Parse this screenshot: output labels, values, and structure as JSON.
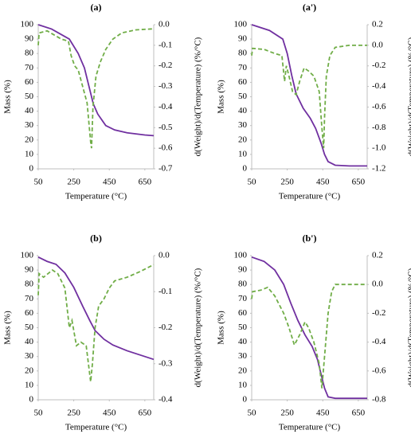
{
  "chart_data": [
    {
      "type": "line",
      "title": "(a)",
      "xlabel": "Temperature (°C)",
      "ylabel": "Mass (%)",
      "y2label": "d(Weight)/d(Temperature) (%/°C)",
      "xlim": [
        50,
        700
      ],
      "xticks": [
        50,
        250,
        450,
        650
      ],
      "ylim": [
        0,
        100
      ],
      "yticks": [
        0,
        10,
        20,
        30,
        40,
        50,
        60,
        70,
        80,
        90,
        100
      ],
      "y2lim": [
        -0.7,
        0
      ],
      "y2ticks": [
        -0.7,
        -0.6,
        -0.5,
        -0.4,
        -0.3,
        -0.2,
        -0.1,
        {
          "value": 0,
          "label": "0.0"
        }
      ],
      "grid": false,
      "series": [
        {
          "color": "#7030a0",
          "x": [
            50,
            125,
            225,
            275,
            310,
            340,
            360,
            385,
            430,
            480,
            550,
            650,
            700
          ],
          "values": [
            100,
            97,
            90,
            80,
            70,
            55,
            45,
            38,
            30,
            27,
            25,
            23.5,
            23
          ]
        },
        {
          "color": "#70ad47",
          "dash": true,
          "axis": "y2",
          "x": [
            50,
            55,
            100,
            140,
            180,
            220,
            235,
            255,
            275,
            300,
            325,
            345,
            350,
            358,
            375,
            400,
            430,
            470,
            520,
            600,
            700
          ],
          "values": [
            -0.1,
            -0.04,
            -0.03,
            -0.05,
            -0.07,
            -0.08,
            -0.15,
            -0.2,
            -0.22,
            -0.3,
            -0.38,
            -0.57,
            -0.6,
            -0.4,
            -0.25,
            -0.18,
            -0.12,
            -0.07,
            -0.04,
            -0.025,
            -0.02
          ]
        }
      ]
    },
    {
      "type": "line",
      "title": "(a')",
      "xlabel": "Temperature (°C)",
      "ylabel": "Mass (%)",
      "y2label": "d(Weight)/d(Temperature) (%/°C)",
      "xlim": [
        50,
        700
      ],
      "xticks": [
        50,
        250,
        450,
        650
      ],
      "ylim": [
        0,
        100
      ],
      "yticks": [
        0,
        10,
        20,
        30,
        40,
        50,
        60,
        70,
        80,
        90,
        100
      ],
      "y2lim": [
        -1.2,
        0.2
      ],
      "y2ticks": [
        {
          "value": -1.2,
          "label": "-1.2"
        },
        {
          "value": -1,
          "label": "-1.0"
        },
        -0.8,
        -0.6,
        -0.4,
        -0.2,
        {
          "value": 0,
          "label": "0.0"
        },
        0.2
      ],
      "grid": false,
      "series": [
        {
          "color": "#7030a0",
          "x": [
            50,
            150,
            225,
            250,
            275,
            300,
            340,
            380,
            410,
            440,
            460,
            480,
            520,
            600,
            700
          ],
          "values": [
            100,
            96,
            90,
            80,
            65,
            52,
            42,
            35,
            28,
            18,
            10,
            5,
            2.5,
            2,
            2
          ]
        },
        {
          "color": "#70ad47",
          "dash": true,
          "axis": "y2",
          "x": [
            50,
            55,
            120,
            180,
            220,
            235,
            245,
            260,
            280,
            300,
            320,
            345,
            370,
            400,
            430,
            445,
            455,
            460,
            470,
            490,
            520,
            600,
            700
          ],
          "values": [
            -0.1,
            -0.03,
            -0.04,
            -0.08,
            -0.1,
            -0.35,
            -0.2,
            -0.3,
            -0.45,
            -0.48,
            -0.35,
            -0.22,
            -0.25,
            -0.3,
            -0.45,
            -0.8,
            -1.0,
            -0.7,
            -0.3,
            -0.1,
            -0.02,
            0,
            0
          ]
        }
      ]
    },
    {
      "type": "line",
      "title": "(b)",
      "xlabel": "Temperature (°C)",
      "ylabel": "Mass (%)",
      "y2label": "d(Weight)/d(Temperature) (%/°C)",
      "xlim": [
        50,
        700
      ],
      "xticks": [
        50,
        250,
        450,
        650
      ],
      "ylim": [
        0,
        100
      ],
      "yticks": [
        0,
        10,
        20,
        30,
        40,
        50,
        60,
        70,
        80,
        90,
        100
      ],
      "y2lim": [
        -0.4,
        0
      ],
      "y2ticks": [
        -0.4,
        -0.3,
        -0.2,
        -0.1,
        {
          "value": 0,
          "label": "0.0"
        }
      ],
      "grid": false,
      "series": [
        {
          "color": "#7030a0",
          "x": [
            50,
            100,
            150,
            200,
            250,
            300,
            340,
            370,
            420,
            470,
            550,
            650,
            700
          ],
          "values": [
            99,
            96,
            94,
            88,
            78,
            65,
            55,
            48,
            42,
            38,
            34,
            30,
            28
          ]
        },
        {
          "color": "#70ad47",
          "dash": true,
          "axis": "y2",
          "x": [
            50,
            55,
            80,
            130,
            160,
            200,
            225,
            240,
            265,
            290,
            320,
            345,
            355,
            370,
            390,
            420,
            450,
            480,
            550,
            620,
            700
          ],
          "values": [
            -0.11,
            -0.05,
            -0.06,
            -0.04,
            -0.05,
            -0.09,
            -0.2,
            -0.18,
            -0.25,
            -0.24,
            -0.25,
            -0.35,
            -0.3,
            -0.2,
            -0.14,
            -0.12,
            -0.09,
            -0.07,
            -0.06,
            -0.045,
            -0.025
          ]
        }
      ]
    },
    {
      "type": "line",
      "title": "(b')",
      "xlabel": "Temperature (°C)",
      "ylabel": "Mass (%)",
      "y2label": "d(Weight)/d(Temperature) (%/°C)",
      "xlim": [
        50,
        700
      ],
      "xticks": [
        50,
        250,
        450,
        650
      ],
      "ylim": [
        0,
        100
      ],
      "yticks": [
        0,
        10,
        20,
        30,
        40,
        50,
        60,
        70,
        80,
        90,
        100
      ],
      "y2lim": [
        -0.8,
        0.2
      ],
      "y2ticks": [
        -0.8,
        -0.6,
        -0.4,
        -0.2,
        {
          "value": 0,
          "label": "0.0"
        },
        0.2
      ],
      "grid": false,
      "series": [
        {
          "color": "#7030a0",
          "x": [
            50,
            120,
            180,
            230,
            270,
            310,
            350,
            390,
            420,
            440,
            460,
            480,
            520,
            600,
            700
          ],
          "values": [
            99,
            96,
            90,
            80,
            67,
            55,
            45,
            37,
            28,
            18,
            8,
            2,
            1,
            1,
            1
          ]
        },
        {
          "color": "#70ad47",
          "dash": true,
          "axis": "y2",
          "x": [
            50,
            55,
            100,
            140,
            180,
            230,
            260,
            290,
            320,
            350,
            370,
            400,
            430,
            445,
            460,
            480,
            500,
            520,
            700
          ],
          "values": [
            -0.1,
            -0.05,
            -0.04,
            -0.02,
            -0.08,
            -0.2,
            -0.3,
            -0.42,
            -0.35,
            -0.26,
            -0.3,
            -0.4,
            -0.55,
            -0.72,
            -0.5,
            -0.2,
            -0.05,
            0,
            0
          ]
        }
      ]
    }
  ]
}
